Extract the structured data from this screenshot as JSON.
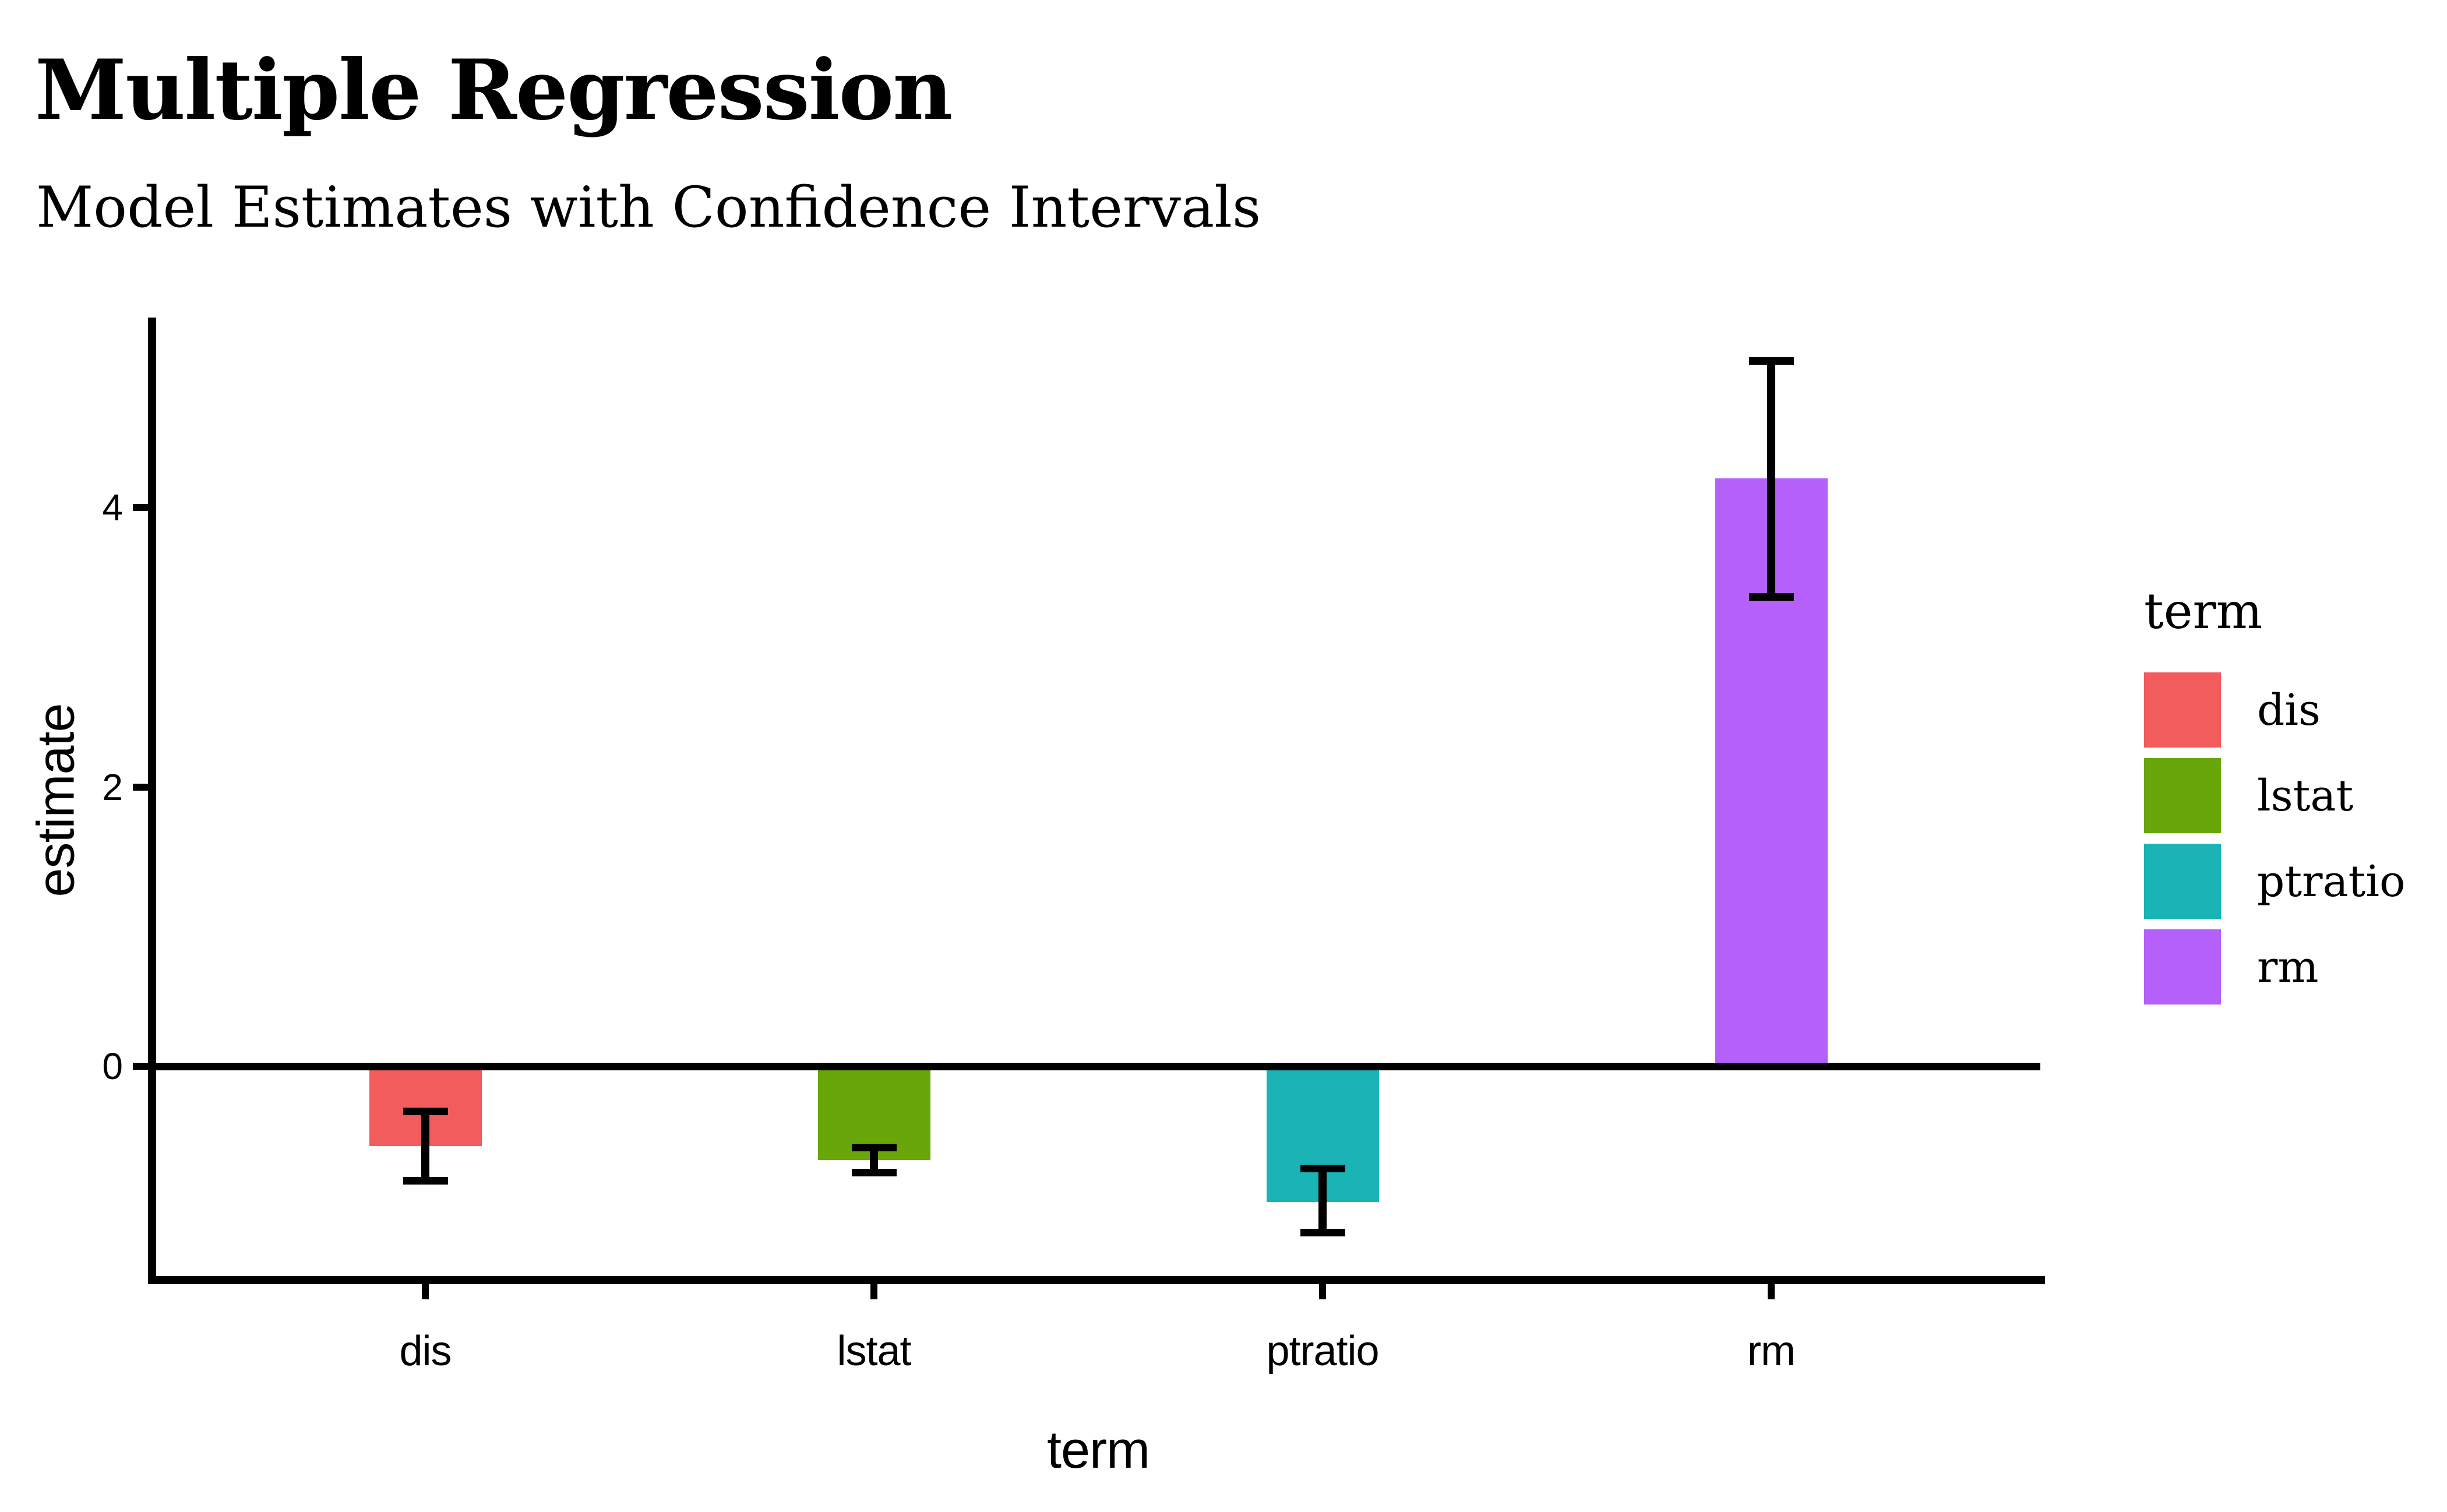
{
  "title": "Multiple Regression",
  "subtitle": "Model Estimates with Confidence Intervals",
  "colors": {
    "axis": "#000000",
    "text": "#000000",
    "background": "#ffffff"
  },
  "chart_data": {
    "type": "bar",
    "title": "Multiple Regression",
    "subtitle": "Model Estimates with Confidence Intervals",
    "xlabel": "term",
    "ylabel": "estimate",
    "categories": [
      "dis",
      "lstat",
      "ptratio",
      "rm"
    ],
    "values": [
      -0.57,
      -0.67,
      -0.97,
      4.21
    ],
    "error_bars": {
      "ci_low": [
        -0.82,
        -0.76,
        -1.19,
        3.36
      ],
      "ci_high": [
        -0.32,
        -0.58,
        -0.73,
        5.05
      ]
    },
    "bar_colors": [
      "#f25c5c",
      "#68a60a",
      "#1ab3b6",
      "#b560fb"
    ],
    "yticks": [
      4,
      2,
      0
    ],
    "ylim": [
      -1.5,
      5.36
    ],
    "grid": "off",
    "zero_reference_line": 0,
    "legend": {
      "title": "term",
      "position": "right",
      "items": [
        {
          "label": "dis",
          "color": "#f25c5c"
        },
        {
          "label": "lstat",
          "color": "#68a60a"
        },
        {
          "label": "ptratio",
          "color": "#1ab3b6"
        },
        {
          "label": "rm",
          "color": "#b560fb"
        }
      ]
    }
  }
}
